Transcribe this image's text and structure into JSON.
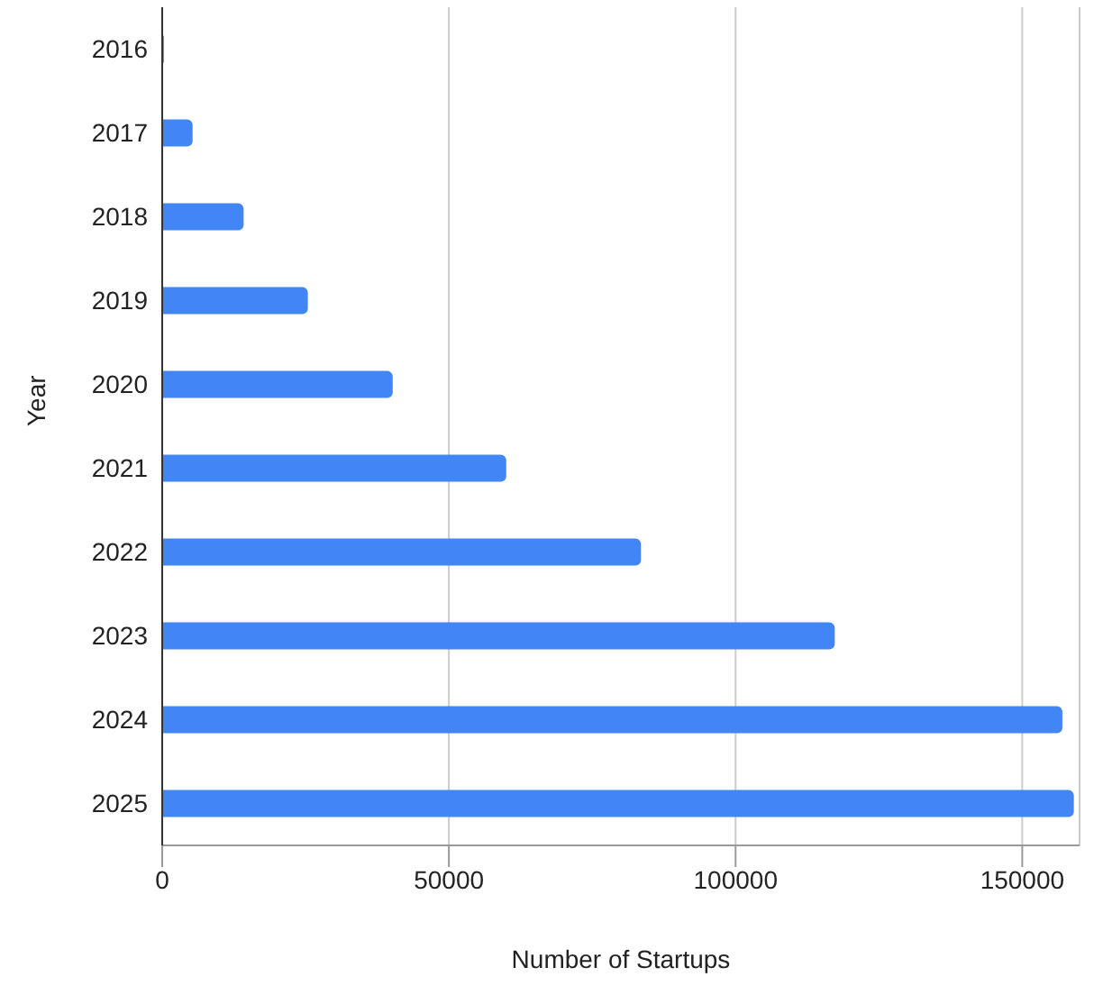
{
  "chart_data": {
    "type": "bar",
    "orientation": "horizontal",
    "xlabel": "Number of Startups",
    "ylabel": "Year",
    "categories": [
      "2016",
      "2017",
      "2018",
      "2019",
      "2020",
      "2021",
      "2022",
      "2023",
      "2024",
      "2025"
    ],
    "values": [
      300,
      5300,
      14200,
      25400,
      40200,
      60000,
      83500,
      117300,
      157000,
      159000
    ],
    "color": "#4285f4",
    "xlim": [
      0,
      160000
    ],
    "xticks": [
      0,
      50000,
      100000,
      150000
    ],
    "grid": "x"
  }
}
